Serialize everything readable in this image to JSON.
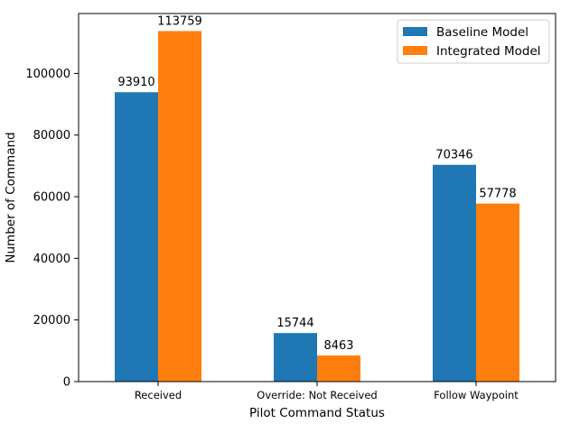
{
  "chart_data": {
    "type": "bar",
    "categories": [
      "Received",
      "Override: Not Received",
      "Follow Waypoint"
    ],
    "series": [
      {
        "name": "Baseline Model",
        "color": "#1f77b4",
        "values": [
          93910,
          15744,
          70346
        ]
      },
      {
        "name": "Integrated Model",
        "color": "#ff7f0e",
        "values": [
          113759,
          8463,
          57778
        ]
      }
    ],
    "title": "",
    "xlabel": "Pilot Command Status",
    "ylabel": "Number of Command",
    "ylim": [
      0,
      119447
    ],
    "yticks": [
      0,
      20000,
      40000,
      60000,
      80000,
      100000
    ],
    "ytick_labels": [
      "0",
      "20000",
      "40000",
      "60000",
      "80000",
      "100000"
    ],
    "data_labels": [
      [
        "93910",
        "15744",
        "70346"
      ],
      [
        "113759",
        "8463",
        "57778"
      ]
    ],
    "grid": false,
    "legend_position": "top-right"
  }
}
